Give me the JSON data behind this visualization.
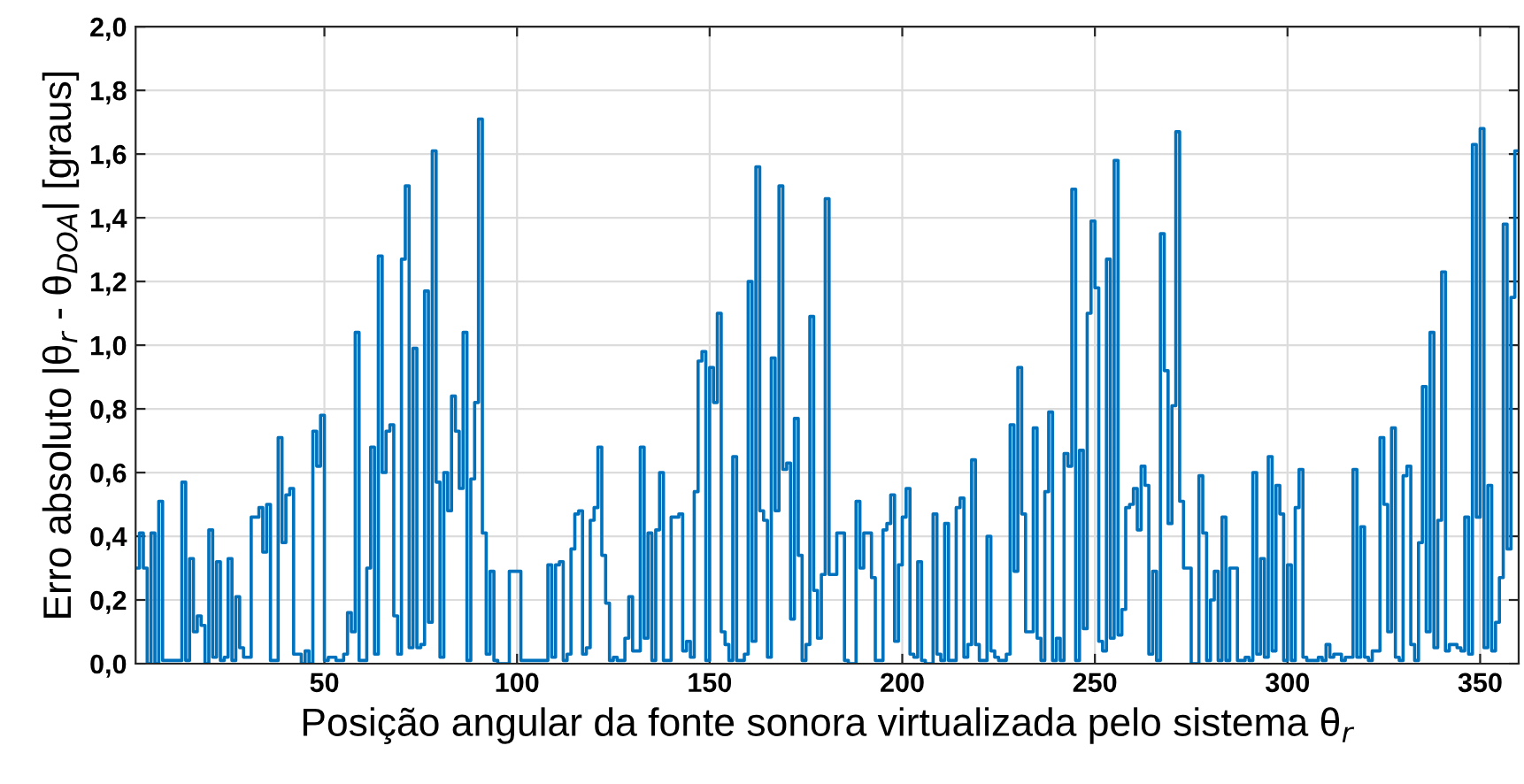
{
  "chart_data": {
    "type": "step",
    "xlabel": "Posição angular da fonte sonora virtualizada pelo sistema θ$_{r}$",
    "ylabel": "Erro absoluto |θ$_{r}$ - θ$_{DOA}$| [graus]",
    "x": [
      1,
      2,
      3,
      4,
      5,
      6,
      7,
      8,
      13,
      14,
      15,
      16,
      17,
      18,
      19,
      20,
      21,
      22,
      23,
      24,
      25,
      26,
      27,
      28,
      29,
      31,
      33,
      34,
      35,
      36,
      38,
      39,
      40,
      41,
      42,
      44,
      45,
      46,
      47,
      48,
      49,
      50,
      51,
      53,
      55,
      56,
      57,
      58,
      59,
      61,
      62,
      63,
      64,
      65,
      66,
      67,
      68,
      69,
      70,
      71,
      72,
      73,
      74,
      75,
      76,
      77,
      78,
      79,
      80,
      81,
      82,
      83,
      84,
      85,
      86,
      87,
      88,
      89,
      90,
      91,
      92,
      93,
      94,
      95,
      98,
      101,
      108,
      109,
      110,
      111,
      112,
      113,
      114,
      115,
      116,
      117,
      118,
      119,
      120,
      121,
      122,
      123,
      124,
      125,
      126,
      128,
      129,
      130,
      132,
      133,
      134,
      135,
      136,
      137,
      138,
      140,
      142,
      143,
      144,
      145,
      146,
      147,
      148,
      149,
      150,
      151,
      152,
      153,
      154,
      155,
      156,
      157,
      159,
      160,
      161,
      162,
      163,
      164,
      165,
      166,
      167,
      168,
      169,
      170,
      171,
      172,
      173,
      174,
      175,
      176,
      177,
      178,
      179,
      180,
      181,
      183,
      185,
      186,
      188,
      189,
      190,
      192,
      193,
      195,
      196,
      197,
      198,
      199,
      200,
      201,
      202,
      203,
      204,
      205,
      206,
      208,
      209,
      210,
      211,
      212,
      214,
      215,
      216,
      217,
      218,
      219,
      220,
      222,
      223,
      224,
      225,
      227,
      228,
      229,
      230,
      231,
      232,
      234,
      235,
      236,
      237,
      238,
      239,
      240,
      241,
      242,
      243,
      244,
      245,
      246,
      247,
      248,
      249,
      250,
      251,
      252,
      253,
      254,
      255,
      256,
      257,
      258,
      259,
      260,
      261,
      262,
      263,
      264,
      265,
      266,
      267,
      268,
      269,
      270,
      271,
      272,
      273,
      275,
      277,
      278,
      279,
      280,
      281,
      282,
      283,
      284,
      285,
      287,
      289,
      290,
      291,
      292,
      293,
      294,
      295,
      296,
      297,
      298,
      299,
      300,
      301,
      302,
      303,
      304,
      305,
      308,
      309,
      310,
      311,
      312,
      314,
      315,
      317,
      318,
      319,
      320,
      321,
      322,
      324,
      325,
      326,
      327,
      328,
      329,
      330,
      331,
      332,
      333,
      334,
      335,
      336,
      337,
      338,
      339,
      340,
      341,
      342,
      344,
      345,
      346,
      347,
      348,
      349,
      350,
      351,
      352,
      353,
      354,
      355,
      356,
      357,
      358,
      359,
      360
    ],
    "values": [
      0.3,
      0.41,
      0.3,
      0,
      0.41,
      0,
      0.51,
      0.01,
      0.57,
      0.01,
      0.33,
      0.1,
      0.15,
      0.12,
      0,
      0.42,
      0.02,
      0.32,
      0.01,
      0.02,
      0.33,
      0.01,
      0.21,
      0.05,
      0.02,
      0.46,
      0.49,
      0.35,
      0.5,
      0.01,
      0.71,
      0.38,
      0.53,
      0.55,
      0.03,
      0,
      0.04,
      0,
      0.73,
      0.62,
      0.78,
      0.01,
      0.02,
      0.01,
      0.03,
      0.16,
      0.1,
      1.04,
      0.01,
      0.3,
      0.68,
      0.03,
      1.28,
      0.6,
      0.73,
      0.75,
      0.15,
      0.03,
      1.27,
      1.5,
      0.05,
      0.99,
      0.05,
      0.06,
      1.17,
      0.13,
      1.61,
      0.57,
      0.02,
      0.6,
      0.48,
      0.84,
      0.73,
      0.55,
      1.04,
      0.01,
      0.58,
      0.82,
      1.71,
      0.41,
      0.03,
      0.29,
      0.01,
      0,
      0.29,
      0.01,
      0.31,
      0.02,
      0.31,
      0.32,
      0.01,
      0.03,
      0.36,
      0.47,
      0.48,
      0.03,
      0.05,
      0.45,
      0.49,
      0.68,
      0.34,
      0.19,
      0.01,
      0.02,
      0.01,
      0.08,
      0.21,
      0.04,
      0.68,
      0.08,
      0.41,
      0.01,
      0.42,
      0.6,
      0.01,
      0.46,
      0.47,
      0.04,
      0.07,
      0.02,
      0.54,
      0.95,
      0.98,
      0.01,
      0.93,
      0.82,
      1.1,
      0.1,
      0.06,
      0.01,
      0.65,
      0.01,
      0.03,
      1.2,
      0.07,
      1.56,
      0.48,
      0.45,
      0.02,
      0.96,
      0.48,
      1.5,
      0.61,
      0.63,
      0.14,
      0.77,
      0.34,
      0.01,
      0.06,
      1.09,
      0.23,
      0.08,
      0.28,
      1.46,
      0.28,
      0.41,
      0.01,
      0,
      0.51,
      0.3,
      0.41,
      0.27,
      0.01,
      0.42,
      0.44,
      0.53,
      0.07,
      0.31,
      0.46,
      0.55,
      0.03,
      0.02,
      0.32,
      0.01,
      0,
      0.47,
      0.03,
      0.01,
      0.44,
      0.01,
      0.49,
      0.52,
      0.02,
      0.06,
      0.64,
      0.06,
      0.01,
      0.4,
      0.04,
      0.02,
      0.01,
      0.03,
      0.75,
      0.29,
      0.93,
      0.47,
      0.1,
      0.74,
      0.08,
      0.01,
      0.54,
      0.79,
      0.01,
      0.08,
      0.01,
      0.66,
      0.62,
      1.49,
      0.01,
      0.67,
      0.11,
      1.1,
      1.39,
      1.18,
      0.07,
      0.04,
      1.27,
      0.08,
      1.58,
      0.09,
      0.17,
      0.49,
      0.5,
      0.55,
      0.42,
      0.62,
      0.56,
      0.03,
      0.29,
      0.01,
      1.35,
      0.92,
      0.44,
      0.81,
      1.67,
      0.51,
      0.3,
      0,
      0.59,
      0.41,
      0.01,
      0.2,
      0.29,
      0.01,
      0.46,
      0.01,
      0.3,
      0.01,
      0.02,
      0.01,
      0.6,
      0.03,
      0.33,
      0.02,
      0.65,
      0.04,
      0.56,
      0.47,
      0.01,
      0.31,
      0.01,
      0.49,
      0.61,
      0.02,
      0.01,
      0.02,
      0.01,
      0.06,
      0.02,
      0.03,
      0.01,
      0.02,
      0.61,
      0.02,
      0.43,
      0.02,
      0.01,
      0.04,
      0.71,
      0.5,
      0.1,
      0.74,
      0.02,
      0.01,
      0.59,
      0.62,
      0.06,
      0.01,
      0.38,
      0.87,
      0.1,
      1.04,
      0.05,
      0.45,
      1.23,
      0.04,
      0.06,
      0.05,
      0.04,
      0.46,
      0.03,
      1.63,
      0.46,
      1.68,
      0.05,
      0.56,
      0.04,
      0.13,
      0.27,
      1.38,
      0.36,
      1.15,
      1.61,
      1.61
    ],
    "color": "#0072bd",
    "xlim": [
      1,
      360
    ],
    "ylim": [
      0,
      2
    ],
    "xticks": [
      50,
      100,
      150,
      200,
      250,
      300,
      350
    ],
    "yticks": [
      {
        "value": 0,
        "label": "0,0"
      },
      {
        "value": 0.2,
        "label": "0,2"
      },
      {
        "value": 0.4,
        "label": "0,4"
      },
      {
        "value": 0.6,
        "label": "0,6"
      },
      {
        "value": 0.8,
        "label": "0,8"
      },
      {
        "value": 1.0,
        "label": "1,0"
      },
      {
        "value": 1.2,
        "label": "1,2"
      },
      {
        "value": 1.4,
        "label": "1,4"
      },
      {
        "value": 1.6,
        "label": "1,6"
      },
      {
        "value": 1.8,
        "label": "1,8"
      },
      {
        "value": 2.0,
        "label": "2,0"
      }
    ],
    "grid": true
  }
}
